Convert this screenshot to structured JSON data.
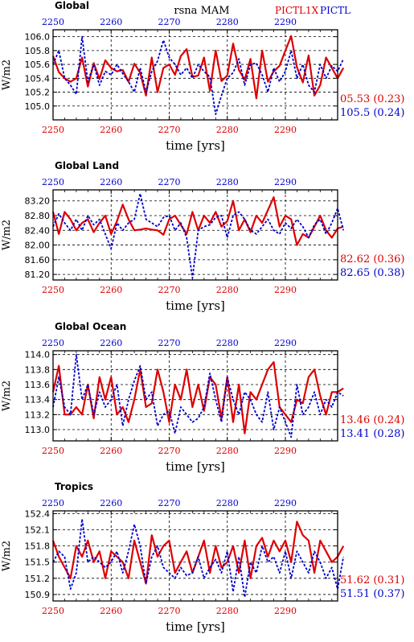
{
  "header": {
    "title": "rsna  MAM",
    "legend_red": "PICTL1X",
    "legend_blue": "PICTL"
  },
  "colors": {
    "red": "#dd0000",
    "blue": "#0000cc",
    "black": "#000000"
  },
  "chart_data": [
    {
      "type": "line",
      "title": "Global",
      "ylabel": "W/m2",
      "xlabel": "time [yrs]",
      "xlim": [
        2250,
        2299
      ],
      "ylim": [
        104.8,
        106.1
      ],
      "yticks": [
        "105.0",
        "105.2",
        "105.4",
        "105.6",
        "105.8",
        "106.0"
      ],
      "ytick_values": [
        105.0,
        105.2,
        105.4,
        105.6,
        105.8,
        106.0
      ],
      "xticks_bottom": [
        "2250",
        "2260",
        "2270",
        "2280",
        "2290"
      ],
      "xticks_top": [
        "2250",
        "2260",
        "2270",
        "2280",
        "2290"
      ],
      "stats_red": "05.53 (0.23)",
      "stats_blue": "105.5 (0.24)",
      "series": [
        {
          "name": "PICTL1X",
          "color": "red",
          "x_start": 2250,
          "values": [
            105.72,
            105.49,
            105.4,
            105.35,
            105.4,
            105.7,
            105.28,
            105.62,
            105.39,
            105.66,
            105.55,
            105.5,
            105.52,
            105.35,
            105.61,
            105.48,
            105.15,
            105.7,
            105.2,
            105.55,
            105.6,
            105.45,
            105.72,
            105.82,
            105.42,
            105.44,
            105.7,
            105.22,
            105.8,
            105.36,
            105.44,
            105.9,
            105.52,
            105.38,
            105.68,
            105.11,
            105.8,
            105.35,
            105.5,
            105.58,
            105.8,
            106.01,
            105.56,
            105.34,
            105.73,
            105.15,
            105.3,
            105.7,
            105.55,
            105.4,
            105.55
          ]
        },
        {
          "name": "PICTL",
          "color": "blue",
          "x_start": 2250,
          "values": [
            105.6,
            105.8,
            105.4,
            105.3,
            105.17,
            106.0,
            105.35,
            105.6,
            105.3,
            105.5,
            105.45,
            105.6,
            105.47,
            105.35,
            105.2,
            105.55,
            105.2,
            105.5,
            105.65,
            105.95,
            105.7,
            105.6,
            105.45,
            105.55,
            105.4,
            105.6,
            105.5,
            105.42,
            104.88,
            105.15,
            105.4,
            105.48,
            105.68,
            105.3,
            105.6,
            105.62,
            105.45,
            105.2,
            105.55,
            105.35,
            105.5,
            105.8,
            105.4,
            105.6,
            105.3,
            105.2,
            105.6,
            105.4,
            105.58,
            105.5,
            105.68
          ]
        }
      ]
    },
    {
      "type": "line",
      "title": "Global Land",
      "ylabel": "W/m2",
      "xlabel": "time [yrs]",
      "xlim": [
        2250,
        2299
      ],
      "ylim": [
        81.05,
        83.5
      ],
      "yticks": [
        "81.20",
        "81.60",
        "82.00",
        "82.40",
        "82.80",
        "83.20"
      ],
      "ytick_values": [
        81.2,
        81.6,
        82.0,
        82.4,
        82.8,
        83.2
      ],
      "xticks_bottom": [
        "2250",
        "2260",
        "2270",
        "2280",
        "2290"
      ],
      "xticks_top": [
        "2250",
        "2260",
        "2270",
        "2280",
        "2290"
      ],
      "stats_red": "82.62 (0.36)",
      "stats_blue": "82.65 (0.38)",
      "series": [
        {
          "name": "PICTL1X",
          "color": "red",
          "x_start": 2250,
          "values": [
            82.9,
            82.3,
            82.9,
            82.7,
            82.4,
            82.6,
            82.7,
            82.35,
            82.6,
            82.8,
            82.3,
            82.65,
            83.1,
            82.7,
            82.4,
            82.42,
            82.45,
            82.42,
            82.4,
            82.28,
            82.7,
            82.8,
            82.55,
            82.3,
            82.9,
            82.4,
            82.8,
            82.6,
            82.9,
            82.5,
            82.65,
            83.2,
            82.4,
            82.7,
            82.35,
            82.8,
            82.6,
            82.95,
            83.3,
            82.5,
            82.8,
            82.7,
            82.0,
            82.3,
            82.2,
            82.5,
            82.8,
            82.4,
            82.2,
            82.45,
            82.5
          ]
        },
        {
          "name": "PICTL",
          "color": "blue",
          "x_start": 2250,
          "values": [
            82.5,
            82.85,
            82.6,
            82.4,
            82.7,
            82.4,
            82.8,
            82.55,
            82.7,
            82.3,
            81.9,
            82.6,
            82.4,
            82.6,
            82.7,
            83.4,
            82.7,
            82.6,
            82.5,
            82.75,
            82.8,
            82.4,
            82.6,
            82.2,
            81.1,
            82.4,
            82.5,
            82.55,
            82.75,
            82.8,
            82.2,
            82.8,
            82.9,
            82.7,
            82.4,
            82.3,
            82.5,
            82.7,
            82.4,
            82.3,
            82.6,
            82.45,
            82.7,
            82.5,
            82.2,
            82.55,
            82.7,
            82.3,
            82.6,
            83.0,
            82.4
          ]
        }
      ]
    },
    {
      "type": "line",
      "title": "Global Ocean",
      "ylabel": "W/m2",
      "xlabel": "time [yrs]",
      "xlim": [
        2250,
        2299
      ],
      "ylim": [
        112.85,
        114.05
      ],
      "yticks": [
        "113.0",
        "113.2",
        "113.4",
        "113.6",
        "113.8",
        "114.0"
      ],
      "ytick_values": [
        113.0,
        113.2,
        113.4,
        113.6,
        113.8,
        114.0
      ],
      "xticks_bottom": [
        "2250",
        "2260",
        "2270",
        "2280",
        "2290"
      ],
      "xticks_top": [
        "2250",
        "2260",
        "2270",
        "2280",
        "2290"
      ],
      "stats_red": "13.46 (0.24)",
      "stats_blue": "13.41 (0.28)",
      "series": [
        {
          "name": "PICTL1X",
          "color": "red",
          "x_start": 2250,
          "values": [
            113.5,
            113.85,
            113.2,
            113.2,
            113.3,
            113.2,
            113.6,
            113.15,
            113.7,
            113.4,
            113.7,
            113.2,
            113.3,
            113.1,
            113.4,
            113.8,
            113.3,
            113.35,
            113.8,
            113.5,
            113.1,
            113.6,
            113.4,
            113.8,
            113.3,
            113.6,
            113.25,
            113.7,
            113.6,
            113.15,
            113.7,
            113.1,
            113.6,
            112.95,
            113.5,
            113.4,
            113.6,
            113.8,
            113.9,
            113.3,
            113.2,
            113.1,
            113.4,
            113.35,
            113.7,
            113.8,
            113.45,
            113.2,
            113.5,
            113.5,
            113.55
          ]
        },
        {
          "name": "PICTL",
          "color": "blue",
          "x_start": 2250,
          "values": [
            113.3,
            113.7,
            113.3,
            113.2,
            114.0,
            113.4,
            113.6,
            113.2,
            113.5,
            113.3,
            113.4,
            113.6,
            113.05,
            113.4,
            113.65,
            113.85,
            113.4,
            113.5,
            113.05,
            113.2,
            113.25,
            112.95,
            113.3,
            113.2,
            113.1,
            113.15,
            113.3,
            113.75,
            113.4,
            113.1,
            113.7,
            113.4,
            113.2,
            113.5,
            113.4,
            113.2,
            113.1,
            113.5,
            113.0,
            113.3,
            113.1,
            112.9,
            113.6,
            113.2,
            113.3,
            113.5,
            113.2,
            113.4,
            113.3,
            113.5,
            113.45
          ]
        }
      ]
    },
    {
      "type": "line",
      "title": "Tropics",
      "ylabel": "W/m2",
      "xlabel": "time [yrs]",
      "xlim": [
        2250,
        2299
      ],
      "ylim": [
        150.78,
        152.45
      ],
      "yticks": [
        "150.9",
        "151.2",
        "151.5",
        "151.8",
        "152.1",
        "152.4"
      ],
      "ytick_values": [
        150.9,
        151.2,
        151.5,
        151.8,
        152.1,
        152.4
      ],
      "xticks_bottom": [
        "2250",
        "2260",
        "2270",
        "2280",
        "2290"
      ],
      "xticks_top": [
        "2250",
        "2260",
        "2270",
        "2280",
        "2290"
      ],
      "stats_red": "51.62 (0.31)",
      "stats_blue": "51.51 (0.37)",
      "series": [
        {
          "name": "PICTL1X",
          "color": "red",
          "x_start": 2250,
          "values": [
            151.9,
            151.6,
            151.4,
            151.2,
            151.8,
            151.6,
            151.9,
            151.5,
            151.7,
            151.2,
            151.7,
            151.6,
            151.5,
            151.2,
            151.9,
            151.5,
            151.1,
            152.0,
            151.6,
            151.8,
            151.9,
            151.3,
            151.5,
            151.7,
            151.3,
            151.6,
            151.9,
            151.3,
            151.8,
            151.4,
            151.5,
            151.8,
            151.3,
            151.9,
            151.2,
            151.8,
            151.95,
            151.6,
            151.9,
            151.7,
            151.9,
            151.5,
            152.25,
            152.0,
            151.9,
            151.3,
            151.9,
            151.7,
            151.5,
            151.6,
            151.8
          ]
        },
        {
          "name": "PICTL",
          "color": "blue",
          "x_start": 2250,
          "values": [
            151.5,
            151.7,
            151.6,
            151.0,
            151.3,
            152.3,
            151.5,
            151.6,
            151.5,
            151.4,
            151.5,
            151.7,
            151.3,
            151.7,
            152.2,
            151.8,
            151.1,
            151.6,
            151.8,
            151.4,
            151.3,
            151.2,
            151.4,
            151.25,
            151.3,
            151.6,
            151.2,
            151.4,
            151.55,
            151.3,
            151.7,
            150.95,
            151.6,
            150.85,
            151.5,
            151.3,
            151.8,
            151.5,
            151.6,
            151.3,
            151.7,
            151.2,
            151.7,
            151.5,
            151.3,
            151.7,
            151.5,
            151.2,
            151.4,
            151.0,
            151.6
          ]
        }
      ]
    }
  ]
}
